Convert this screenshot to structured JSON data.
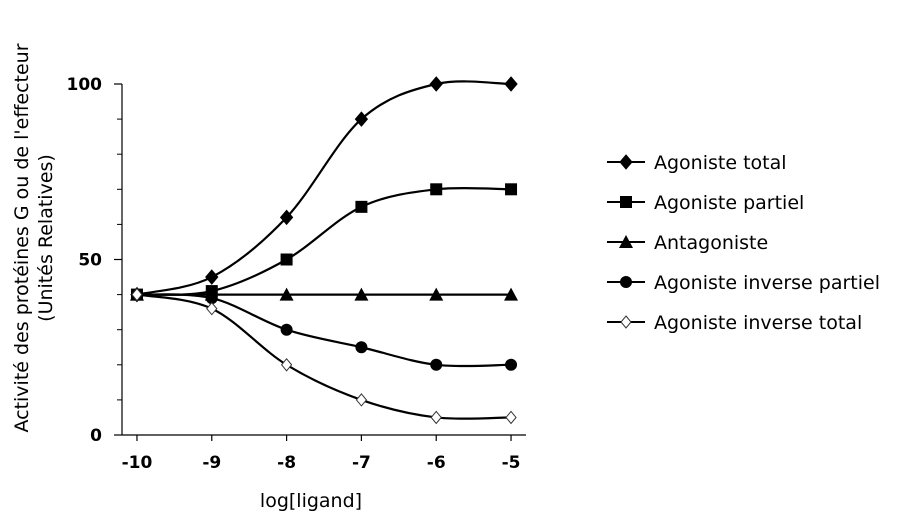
{
  "chart_data": {
    "type": "line",
    "xlabel": "log[ligand]",
    "ylabel_lines": [
      "Activité des protéines G ou de l'effecteur",
      "(Unités Relatives)"
    ],
    "x": [
      -10,
      -9,
      -8,
      -7,
      -6,
      -5
    ],
    "x_tick_labels": [
      "-10",
      "-9",
      "-8",
      "-7",
      "-6",
      "-5"
    ],
    "xlim": [
      -10.2,
      -4.8
    ],
    "ylim": [
      0,
      100
    ],
    "y_tick_labels": [
      "0",
      "50",
      "100"
    ],
    "y_labeled_ticks": [
      0,
      50,
      100
    ],
    "y_minor_ticks": [
      0,
      10,
      20,
      30,
      40,
      50,
      60,
      70,
      80,
      90,
      100
    ],
    "grid": false,
    "legend_position": "right",
    "series": [
      {
        "name": "Agoniste total",
        "marker": "diamond-filled",
        "values": [
          40,
          45,
          62,
          90,
          100,
          100
        ]
      },
      {
        "name": "Agoniste partiel",
        "marker": "square-filled",
        "values": [
          40,
          41,
          50,
          65,
          70,
          70
        ]
      },
      {
        "name": "Antagoniste",
        "marker": "triangle-filled",
        "values": [
          40,
          40,
          40,
          40,
          40,
          40
        ]
      },
      {
        "name": "Agoniste inverse partiel",
        "marker": "circle-filled",
        "values": [
          40,
          39,
          30,
          25,
          20,
          20
        ]
      },
      {
        "name": "Agoniste inverse total",
        "marker": "diamond-open",
        "values": [
          40,
          36,
          20,
          10,
          5,
          5
        ]
      }
    ]
  }
}
